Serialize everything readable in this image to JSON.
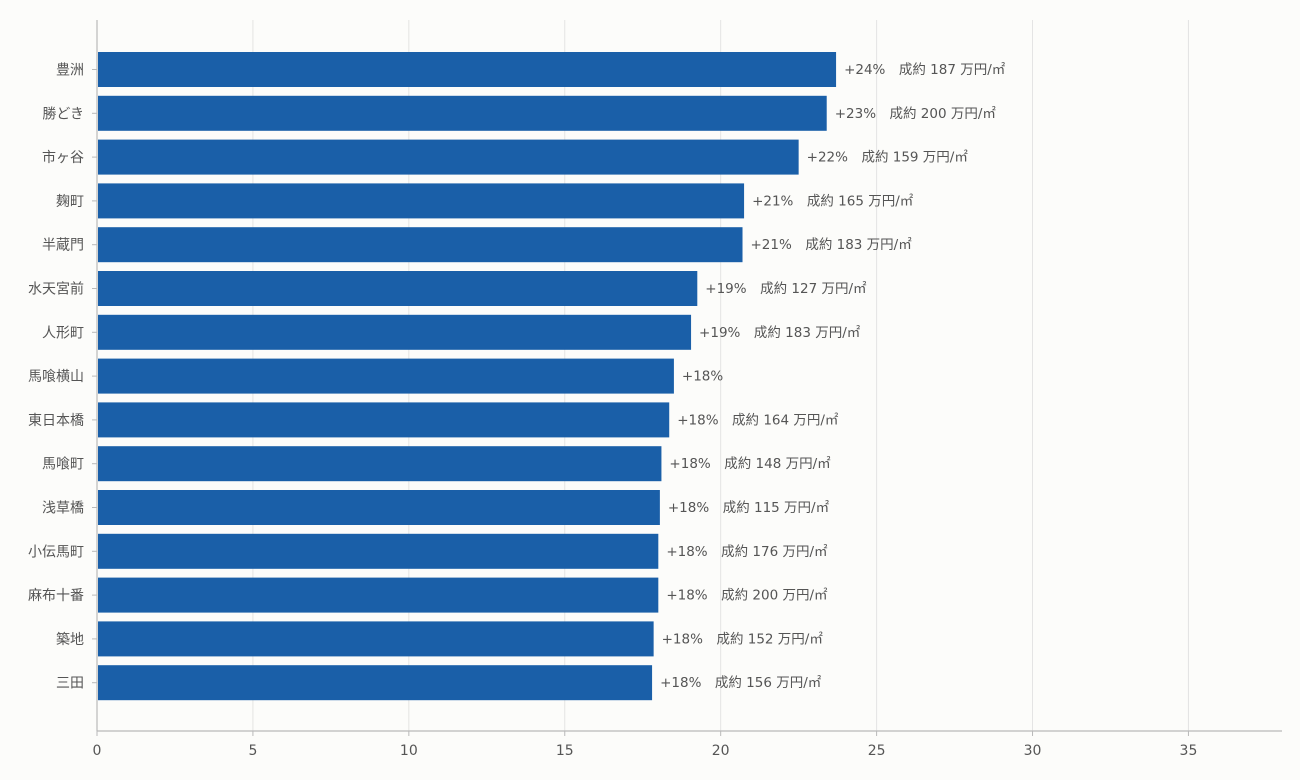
{
  "chart_data": {
    "type": "bar",
    "orientation": "horizontal",
    "categories": [
      "豊洲",
      "勝どき",
      "市ヶ谷",
      "麹町",
      "半蔵門",
      "水天宮前",
      "人形町",
      "馬喰横山",
      "東日本橋",
      "馬喰町",
      "浅草橋",
      "小伝馬町",
      "麻布十番",
      "築地",
      "三田"
    ],
    "values": [
      23.7,
      23.4,
      22.5,
      20.75,
      20.7,
      19.25,
      19.05,
      18.5,
      18.35,
      18.1,
      18.05,
      18.0,
      18.0,
      17.85,
      17.8
    ],
    "labels": [
      "+24%　成約 187 万円/㎡",
      "+23%　成約 200 万円/㎡",
      "+22%　成約 159 万円/㎡",
      "+21%　成約 165 万円/㎡",
      "+21%　成約 183 万円/㎡",
      "+19%　成約 127 万円/㎡",
      "+19%　成約 183 万円/㎡",
      "+18%",
      "+18%　成約 164 万円/㎡",
      "+18%　成約 148 万円/㎡",
      "+18%　成約 115 万円/㎡",
      "+18%　成約 176 万円/㎡",
      "+18%　成約 200 万円/㎡",
      "+18%　成約 152 万円/㎡",
      "+18%　成約 156 万円/㎡"
    ],
    "xlim": [
      0,
      38
    ],
    "xticks": [
      "0",
      "5",
      "10",
      "15",
      "20",
      "25",
      "30",
      "35"
    ],
    "xlabel": "",
    "ylabel": "",
    "title": "",
    "grid": "vertical",
    "bar_color": "#1a5fa8"
  }
}
